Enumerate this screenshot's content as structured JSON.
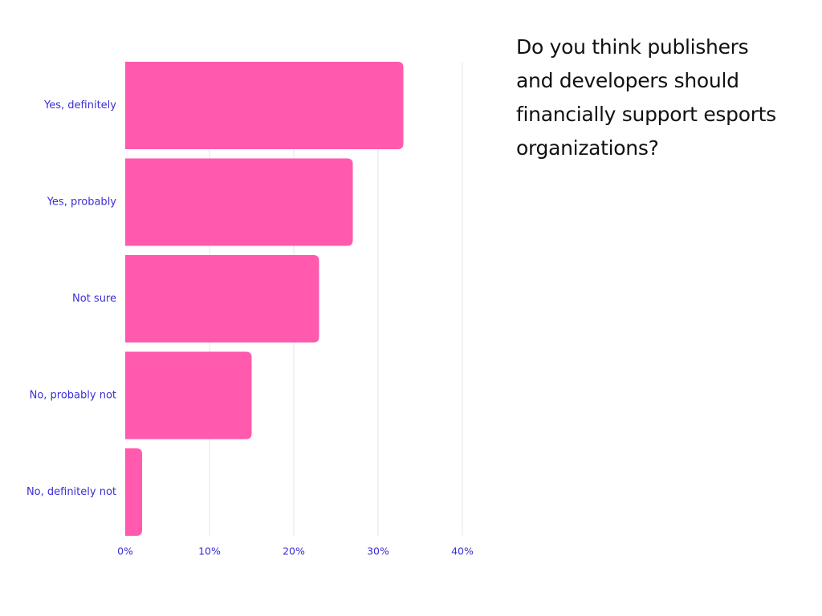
{
  "chart_data": {
    "type": "bar",
    "orientation": "horizontal",
    "title": "Do you think publishers and developers should financially support esports organizations?",
    "categories": [
      "Yes, definitely",
      "Yes, probably",
      "Not sure",
      "No, probably not",
      "No, definitely not"
    ],
    "values": [
      33,
      27,
      23,
      15,
      2
    ],
    "value_unit": "%",
    "xlim": [
      0,
      40
    ],
    "xticks": [
      0,
      10,
      20,
      30,
      40
    ],
    "xtick_labels": [
      "0%",
      "10%",
      "20%",
      "30%",
      "40%"
    ],
    "xlabel": "",
    "ylabel": "",
    "grid": true,
    "legend": "none"
  },
  "colors": {
    "bar": "#ff5aad",
    "label": "#3a2fd6",
    "grid": "#e4e4ee",
    "title": "#111111"
  }
}
